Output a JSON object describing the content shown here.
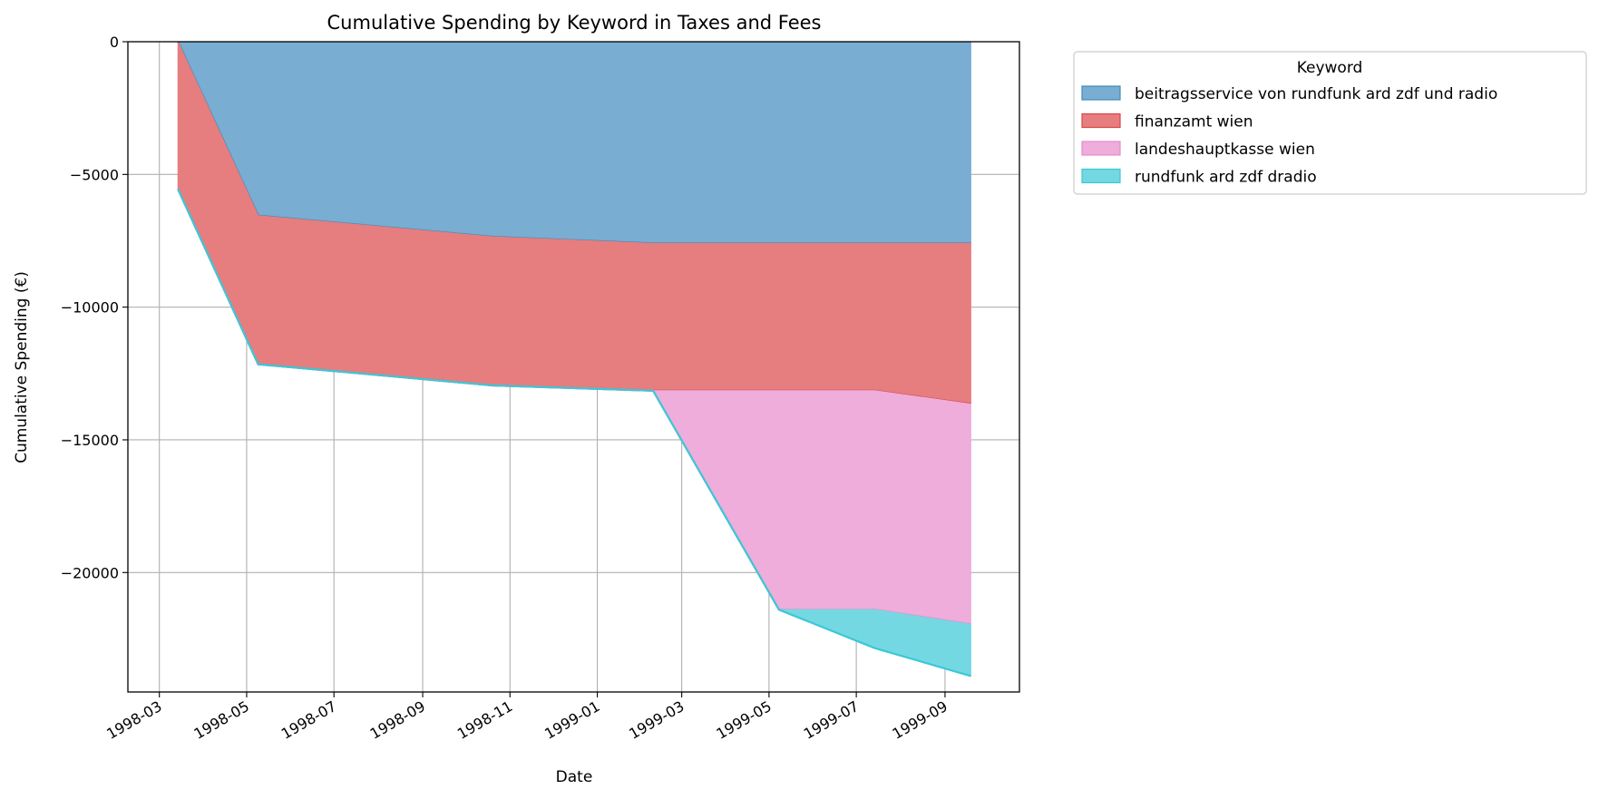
{
  "chart_data": {
    "type": "area",
    "stacked": true,
    "title": "Cumulative Spending by Keyword in Taxes and Fees",
    "xlabel": "Date",
    "ylabel": "Cumulative Spending (€)",
    "x_ticks": [
      "1998-03",
      "1998-05",
      "1998-07",
      "1998-09",
      "1998-11",
      "1999-01",
      "1999-03",
      "1999-05",
      "1999-07",
      "1999-09"
    ],
    "y_ticks": [
      "0",
      "−5000",
      "−10000",
      "−15000",
      "−20000"
    ],
    "y_tick_values": [
      0,
      -5000,
      -10000,
      -15000,
      -20000
    ],
    "xlim": [
      "1998-02-07",
      "1999-10-23"
    ],
    "ylim": [
      -24500,
      0
    ],
    "grid": true,
    "legend": {
      "title": "Keyword",
      "placement": "outside-top-right"
    },
    "x": [
      "1998-03-14",
      "1998-05-09",
      "1998-10-20",
      "1999-02-09",
      "1999-05-08",
      "1999-07-14",
      "1999-09-19"
    ],
    "series": [
      {
        "name": "beitragsservice von rundfunk ard zdf und radio",
        "color": "#1f77b4",
        "values": [
          0,
          -6550,
          -7350,
          -7600,
          -7600,
          -7600,
          -7600
        ]
      },
      {
        "name": "finanzamt wien",
        "color": "#d62728",
        "values": [
          -5550,
          -5600,
          -5600,
          -5550,
          -5550,
          -5550,
          -6050
        ]
      },
      {
        "name": "landeshauptkasse wien",
        "color": "#e377c2",
        "values": [
          0,
          0,
          0,
          0,
          -8250,
          -8250,
          -8300
        ]
      },
      {
        "name": "rundfunk ard zdf dradio",
        "color": "#17becf",
        "values": [
          0,
          0,
          0,
          0,
          0,
          -1450,
          -1950
        ]
      }
    ]
  }
}
